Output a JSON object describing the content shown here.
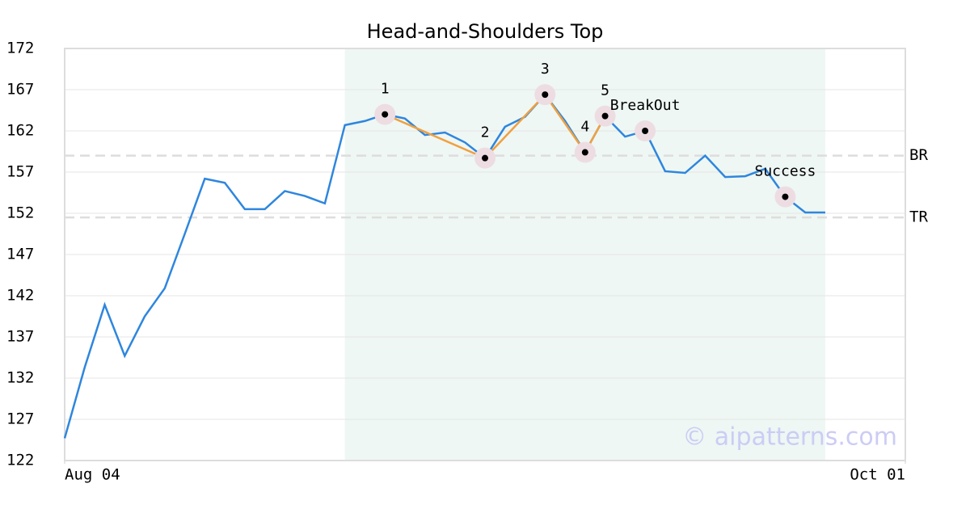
{
  "chart_data": {
    "type": "line",
    "title": "Head-and-Shoulders Top",
    "x": [
      0,
      1,
      2,
      3,
      4,
      5,
      6,
      7,
      8,
      9,
      10,
      11,
      12,
      13,
      14,
      15,
      16,
      17,
      18,
      19,
      20,
      21,
      22,
      23,
      24,
      25,
      26,
      27,
      28,
      29,
      30,
      31,
      32,
      33,
      34,
      35,
      36,
      37,
      38
    ],
    "xlim": [
      0,
      42
    ],
    "xticks": [
      {
        "value": 0,
        "label": "Aug 04"
      },
      {
        "value": 42,
        "label": "Oct 01"
      }
    ],
    "ylim": [
      122,
      172
    ],
    "yticks": [
      122,
      127,
      132,
      137,
      142,
      147,
      152,
      157,
      162,
      167,
      172
    ],
    "grid": true,
    "series": [
      {
        "color": "#2e86de",
        "values": [
          124.7,
          133.3,
          140.9,
          134.7,
          139.5,
          142.9,
          149.5,
          156.2,
          155.7,
          152.5,
          152.5,
          154.7,
          154.1,
          153.2,
          162.7,
          163.2,
          164.0,
          163.5,
          161.5,
          161.8,
          160.6,
          158.7,
          162.5,
          163.7,
          166.4,
          163.2,
          159.4,
          163.8,
          161.3,
          162.0,
          157.1,
          156.9,
          159.0,
          156.4,
          156.5,
          157.4,
          154.0,
          152.1,
          152.1
        ]
      }
    ],
    "pattern": {
      "color": "#f0a040",
      "x": [
        16,
        21,
        24,
        26,
        27
      ],
      "values": [
        164.0,
        158.7,
        166.4,
        159.4,
        163.8
      ],
      "labels": [
        "1",
        "2",
        "3",
        "4",
        "5"
      ]
    },
    "annotations": [
      {
        "text": "BreakOut",
        "x": 29,
        "y": 162.0
      },
      {
        "text": "Success",
        "x": 36,
        "y": 154.0
      }
    ],
    "reference_lines": [
      {
        "label": "BR",
        "value": 159.0
      },
      {
        "label": "TR",
        "value": 151.5
      }
    ],
    "highlight": {
      "x": [
        14,
        38
      ],
      "color": "#eef7f3"
    },
    "watermark": "© aipatterns.com"
  }
}
